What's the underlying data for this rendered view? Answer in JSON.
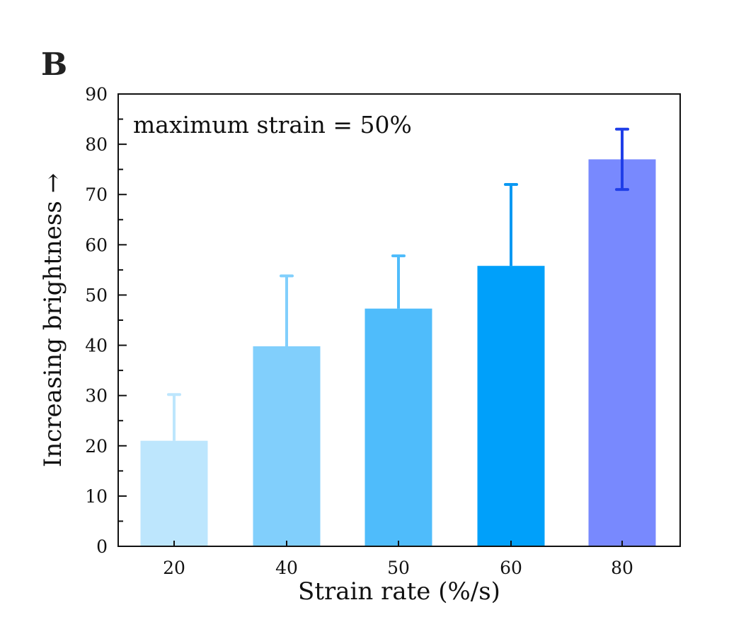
{
  "panel_label": "B",
  "chart_data": {
    "type": "bar",
    "title": "",
    "xlabel": "Strain rate (%/s)",
    "ylabel": "Increasing brightness →",
    "annotation": "maximum strain = 50%",
    "categories": [
      "20",
      "40",
      "50",
      "60",
      "80"
    ],
    "values": [
      21,
      39.8,
      47.3,
      55.8,
      77
    ],
    "error_upper": [
      30.2,
      53.8,
      57.8,
      72,
      83
    ],
    "error_lower": [
      null,
      null,
      null,
      null,
      71
    ],
    "ylim": [
      0,
      90
    ],
    "yticks": [
      0,
      10,
      20,
      30,
      40,
      50,
      60,
      70,
      80,
      90
    ],
    "grid": false,
    "bar_colors": [
      "#bde6fd",
      "#81cffc",
      "#4fbcfb",
      "#00a0fa",
      "#7889fe"
    ],
    "error_colors": [
      "#bde6fd",
      "#81cffc",
      "#4fbcfb",
      "#0a98f2",
      "#1f3ee8"
    ]
  }
}
